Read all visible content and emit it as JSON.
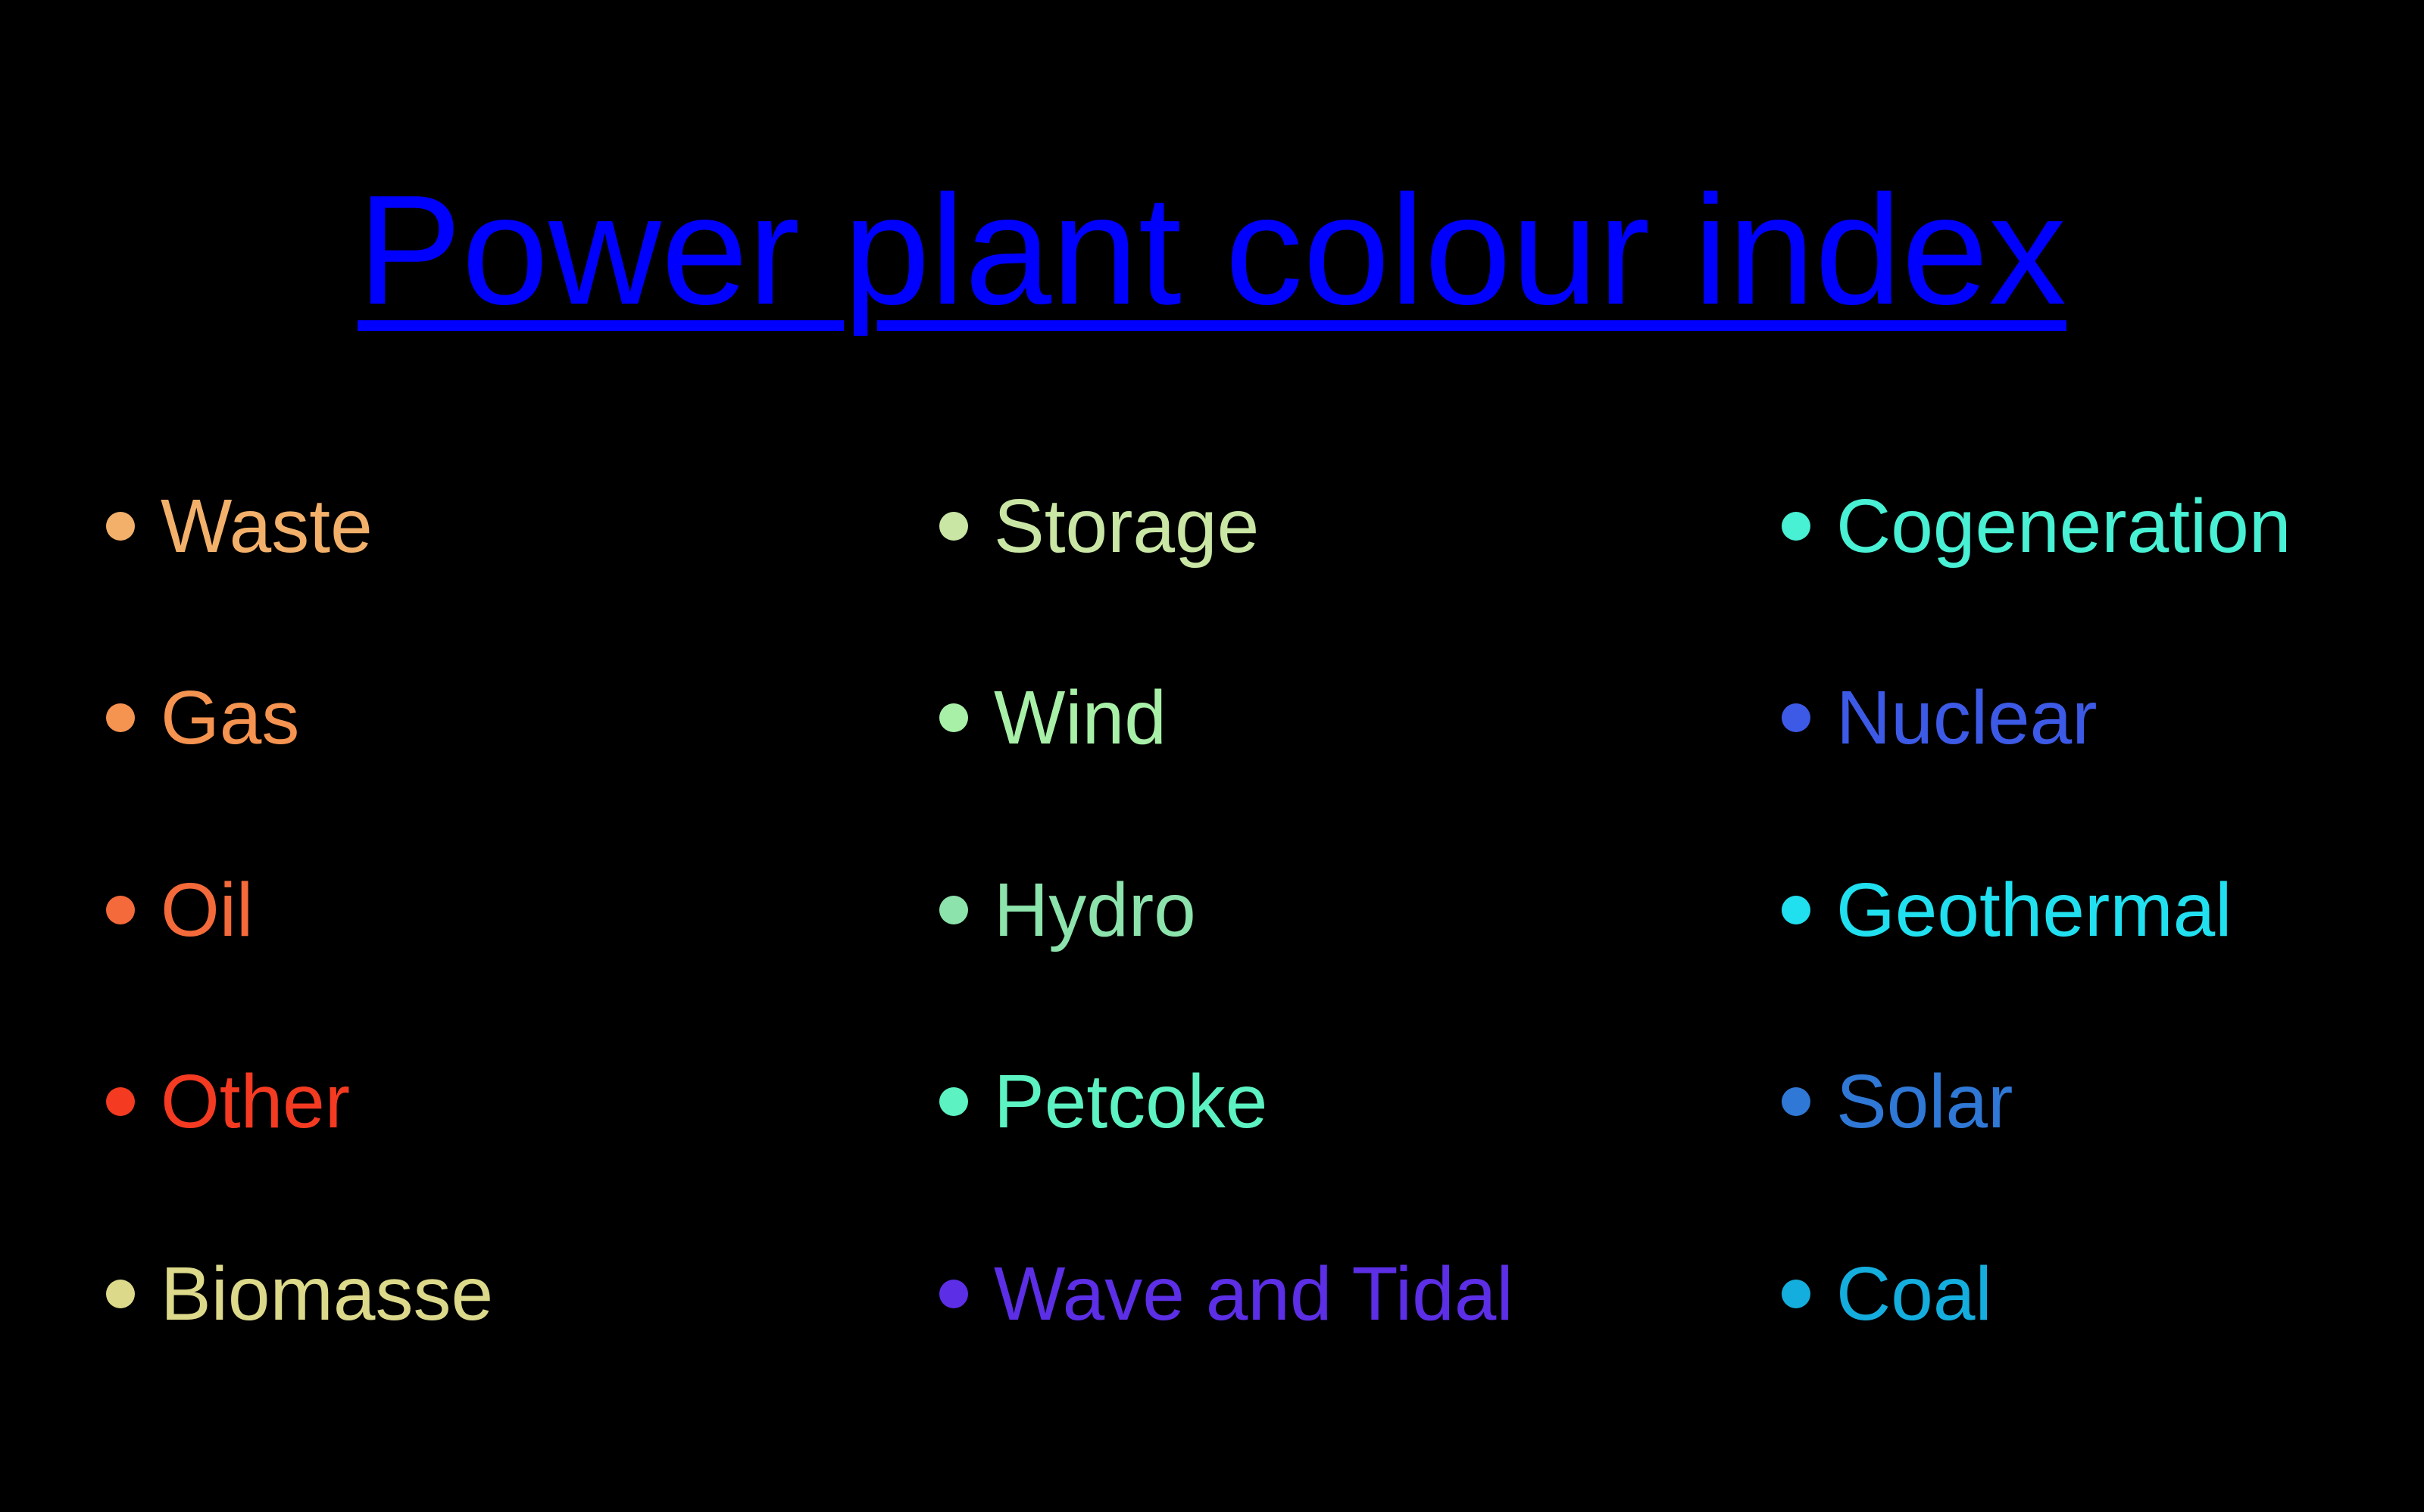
{
  "title": "Power plant colour index",
  "columns": [
    {
      "items": [
        {
          "label": "Waste",
          "color": "#f2b06a"
        },
        {
          "label": "Gas",
          "color": "#f59350"
        },
        {
          "label": "Oil",
          "color": "#f56a3a"
        },
        {
          "label": "Other",
          "color": "#f53a22"
        },
        {
          "label": "Biomasse",
          "color": "#dcd98a"
        }
      ]
    },
    {
      "items": [
        {
          "label": "Storage",
          "color": "#c9e6a4"
        },
        {
          "label": "Wind",
          "color": "#a8f0a8"
        },
        {
          "label": "Hydro",
          "color": "#8ce3ac"
        },
        {
          "label": "Petcoke",
          "color": "#5cf2c2"
        },
        {
          "label": "Wave and Tidal",
          "color": "#5c2ee6"
        }
      ]
    },
    {
      "items": [
        {
          "label": "Cogeneration",
          "color": "#48f0d4"
        },
        {
          "label": "Nuclear",
          "color": "#3d5ae6"
        },
        {
          "label": "Geothermal",
          "color": "#20e0f0"
        },
        {
          "label": "Solar",
          "color": "#2f78d6"
        },
        {
          "label": "Coal",
          "color": "#14aede"
        }
      ]
    }
  ]
}
